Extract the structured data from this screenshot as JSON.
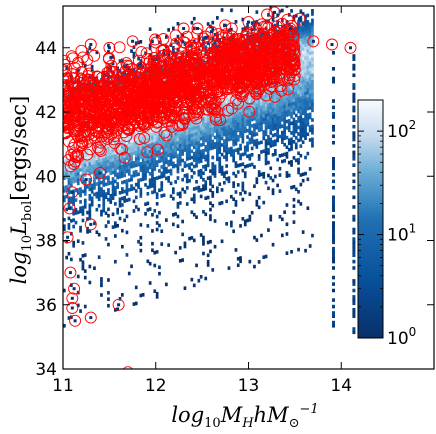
{
  "chart_data": {
    "type": "heatmap",
    "title": "",
    "xlabel": "log10 M_H h M_sun^-1",
    "ylabel": "log10 L_bol [ergs/sec]",
    "xlim": [
      11,
      15
    ],
    "ylim": [
      34,
      45.3
    ],
    "x_ticks": [
      11,
      12,
      13,
      14
    ],
    "y_ticks": [
      34,
      36,
      38,
      40,
      42,
      44
    ],
    "x_tick_labels": [
      "11",
      "12",
      "13",
      "14"
    ],
    "y_tick_labels": [
      "34",
      "36",
      "38",
      "40",
      "42",
      "44"
    ],
    "grid": false,
    "colorbar": {
      "scale": "log",
      "range": [
        1,
        200
      ],
      "ticks": [
        1,
        10,
        100
      ],
      "tick_labels": [
        "10^0",
        "10^1",
        "10^2"
      ],
      "placement": "inside-right",
      "colormap": "Blues_r"
    },
    "density_ridge": [
      {
        "x": 11.0,
        "y": 41.6
      },
      {
        "x": 11.5,
        "y": 42.0
      },
      {
        "x": 12.0,
        "y": 42.4
      },
      {
        "x": 12.5,
        "y": 42.8
      },
      {
        "x": 13.0,
        "y": 43.3
      },
      {
        "x": 13.5,
        "y": 43.7
      },
      {
        "x": 13.7,
        "y": 43.9
      }
    ],
    "overlay_series": {
      "marker": "open circle",
      "color": "#ff0000",
      "envelope": [
        {
          "x": 11.0,
          "lo": 39.8,
          "hi": 44.0
        },
        {
          "x": 11.5,
          "lo": 40.3,
          "hi": 44.2
        },
        {
          "x": 12.0,
          "lo": 40.8,
          "hi": 44.4
        },
        {
          "x": 12.5,
          "lo": 41.4,
          "hi": 44.8
        },
        {
          "x": 13.0,
          "lo": 41.9,
          "hi": 45.1
        },
        {
          "x": 13.5,
          "lo": 42.4,
          "hi": 45.2
        }
      ],
      "outliers": [
        {
          "x": 11.08,
          "y": 37.0
        },
        {
          "x": 11.1,
          "y": 36.2
        },
        {
          "x": 11.13,
          "y": 35.5
        },
        {
          "x": 11.3,
          "y": 35.6
        },
        {
          "x": 11.6,
          "y": 36.0
        },
        {
          "x": 11.7,
          "y": 33.9
        },
        {
          "x": 11.05,
          "y": 38.1
        },
        {
          "x": 11.07,
          "y": 39.0
        },
        {
          "x": 11.3,
          "y": 38.5
        },
        {
          "x": 11.1,
          "y": 39.5
        },
        {
          "x": 11.25,
          "y": 39.9
        },
        {
          "x": 11.4,
          "y": 40.1
        },
        {
          "x": 11.1,
          "y": 35.9
        },
        {
          "x": 11.12,
          "y": 36.5
        },
        {
          "x": 11.3,
          "y": 44.1
        },
        {
          "x": 11.5,
          "y": 44.0
        },
        {
          "x": 11.75,
          "y": 44.2
        },
        {
          "x": 12.3,
          "y": 44.6
        },
        {
          "x": 12.45,
          "y": 44.6
        },
        {
          "x": 12.6,
          "y": 44.5
        },
        {
          "x": 12.75,
          "y": 44.7
        },
        {
          "x": 13.0,
          "y": 44.8
        },
        {
          "x": 13.28,
          "y": 45.1
        },
        {
          "x": 13.45,
          "y": 44.6
        },
        {
          "x": 13.55,
          "y": 44.9
        },
        {
          "x": 13.7,
          "y": 44.2
        },
        {
          "x": 14.1,
          "y": 44.0
        },
        {
          "x": 13.9,
          "y": 44.1
        }
      ]
    },
    "isolated_columns": [
      {
        "x": 13.9,
        "ylo": 35.3,
        "yhi": 44.0
      },
      {
        "x": 14.12,
        "ylo": 35.1,
        "yhi": 43.8
      }
    ]
  }
}
